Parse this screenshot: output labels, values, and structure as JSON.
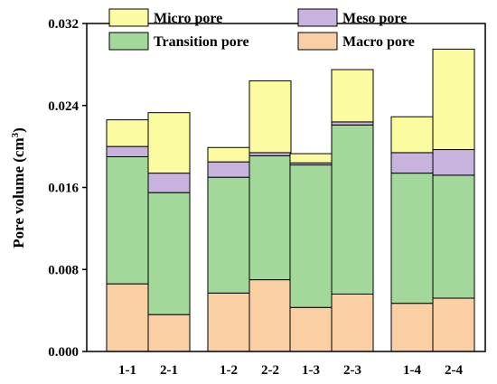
{
  "chart_data": {
    "type": "bar",
    "stacked": true,
    "categories": [
      "1-1",
      "2-1",
      "1-2",
      "2-2",
      "1-3",
      "2-3",
      "1-4",
      "2-4"
    ],
    "groups": [
      [
        "1-1",
        "2-1"
      ],
      [
        "1-2",
        "2-2"
      ],
      [
        "1-3",
        "2-3"
      ],
      [
        "1-4",
        "2-4"
      ]
    ],
    "series": [
      {
        "name": "Macro pore",
        "color": "#f9cfa3",
        "values": [
          0.0066,
          0.0036,
          0.0057,
          0.007,
          0.0043,
          0.0056,
          0.0047,
          0.0052
        ]
      },
      {
        "name": "Transition pore",
        "color": "#a2d99a",
        "values": [
          0.0124,
          0.0119,
          0.0113,
          0.0121,
          0.0139,
          0.0165,
          0.0127,
          0.012
        ]
      },
      {
        "name": "Meso pore",
        "color": "#c8b3df",
        "values": [
          0.001,
          0.0019,
          0.0015,
          0.0003,
          0.0002,
          0.0003,
          0.002,
          0.0025
        ]
      },
      {
        "name": "Micro pore",
        "color": "#fbfba0",
        "values": [
          0.0026,
          0.0059,
          0.0014,
          0.007,
          0.0009,
          0.0051,
          0.0035,
          0.0098
        ]
      }
    ],
    "ylabel": "Pore volume (cm³)",
    "ylabel_main": "Pore volume (cm",
    "ylabel_sup": "3",
    "ylabel_close": ")",
    "xlabel": "",
    "ylim": [
      0.0,
      0.032
    ],
    "yticks": [
      "0.000",
      "0.008",
      "0.016",
      "0.024",
      "0.032"
    ],
    "legend_position": "top",
    "legend_order": [
      "Micro pore",
      "Meso pore",
      "Transition pore",
      "Macro pore"
    ],
    "grid": false
  }
}
